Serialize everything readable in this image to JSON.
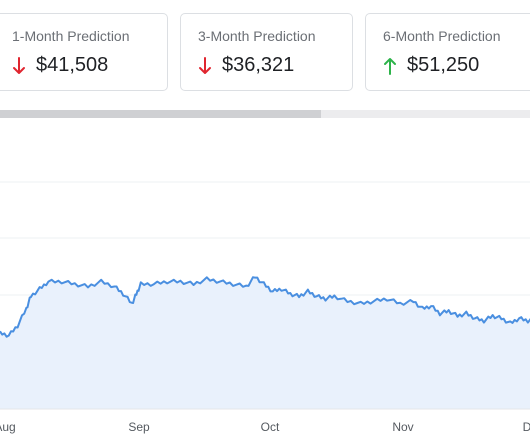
{
  "cards": [
    {
      "label": "1-Month Prediction",
      "value": "$41,508",
      "direction": "down",
      "arrow_color": "#e0252f",
      "selected": true
    },
    {
      "label": "3-Month Prediction",
      "value": "$36,321",
      "direction": "down",
      "arrow_color": "#e0252f",
      "selected": false
    },
    {
      "label": "6-Month Prediction",
      "value": "$51,250",
      "direction": "up",
      "arrow_color": "#2db34a",
      "selected": false
    }
  ],
  "chart_data": {
    "type": "area",
    "line_color": "#4a8fe0",
    "fill_color": "#e9f1fc",
    "grid": true,
    "x_labels": [
      "Aug",
      "Sep",
      "Oct",
      "Nov",
      "D"
    ],
    "series": [
      {
        "points": [
          [
            0.0,
            0.31
          ],
          [
            0.02,
            0.3
          ],
          [
            0.04,
            0.34
          ],
          [
            0.06,
            0.41
          ],
          [
            0.07,
            0.46
          ],
          [
            0.09,
            0.49
          ],
          [
            0.11,
            0.52
          ],
          [
            0.14,
            0.52
          ],
          [
            0.17,
            0.51
          ],
          [
            0.2,
            0.5
          ],
          [
            0.23,
            0.52
          ],
          [
            0.26,
            0.5
          ],
          [
            0.28,
            0.47
          ],
          [
            0.3,
            0.43
          ],
          [
            0.31,
            0.47
          ],
          [
            0.32,
            0.51
          ],
          [
            0.35,
            0.51
          ],
          [
            0.38,
            0.52
          ],
          [
            0.41,
            0.52
          ],
          [
            0.44,
            0.51
          ],
          [
            0.47,
            0.53
          ],
          [
            0.5,
            0.52
          ],
          [
            0.53,
            0.51
          ],
          [
            0.56,
            0.5
          ],
          [
            0.58,
            0.54
          ],
          [
            0.6,
            0.51
          ],
          [
            0.62,
            0.48
          ],
          [
            0.64,
            0.49
          ],
          [
            0.66,
            0.47
          ],
          [
            0.68,
            0.46
          ],
          [
            0.7,
            0.48
          ],
          [
            0.72,
            0.46
          ],
          [
            0.74,
            0.45
          ],
          [
            0.76,
            0.46
          ],
          [
            0.79,
            0.44
          ],
          [
            0.82,
            0.43
          ],
          [
            0.85,
            0.44
          ],
          [
            0.88,
            0.45
          ],
          [
            0.91,
            0.43
          ],
          [
            0.94,
            0.44
          ],
          [
            0.96,
            0.41
          ],
          [
            0.98,
            0.42
          ],
          [
            1.0,
            0.39
          ],
          [
            1.02,
            0.4
          ],
          [
            1.04,
            0.38
          ],
          [
            1.06,
            0.39
          ],
          [
            1.08,
            0.37
          ],
          [
            1.1,
            0.36
          ],
          [
            1.12,
            0.38
          ],
          [
            1.14,
            0.37
          ],
          [
            1.16,
            0.35
          ],
          [
            1.18,
            0.37
          ],
          [
            1.2,
            0.36
          ],
          [
            1.22,
            0.38
          ],
          [
            1.24,
            0.37
          ]
        ]
      }
    ]
  }
}
